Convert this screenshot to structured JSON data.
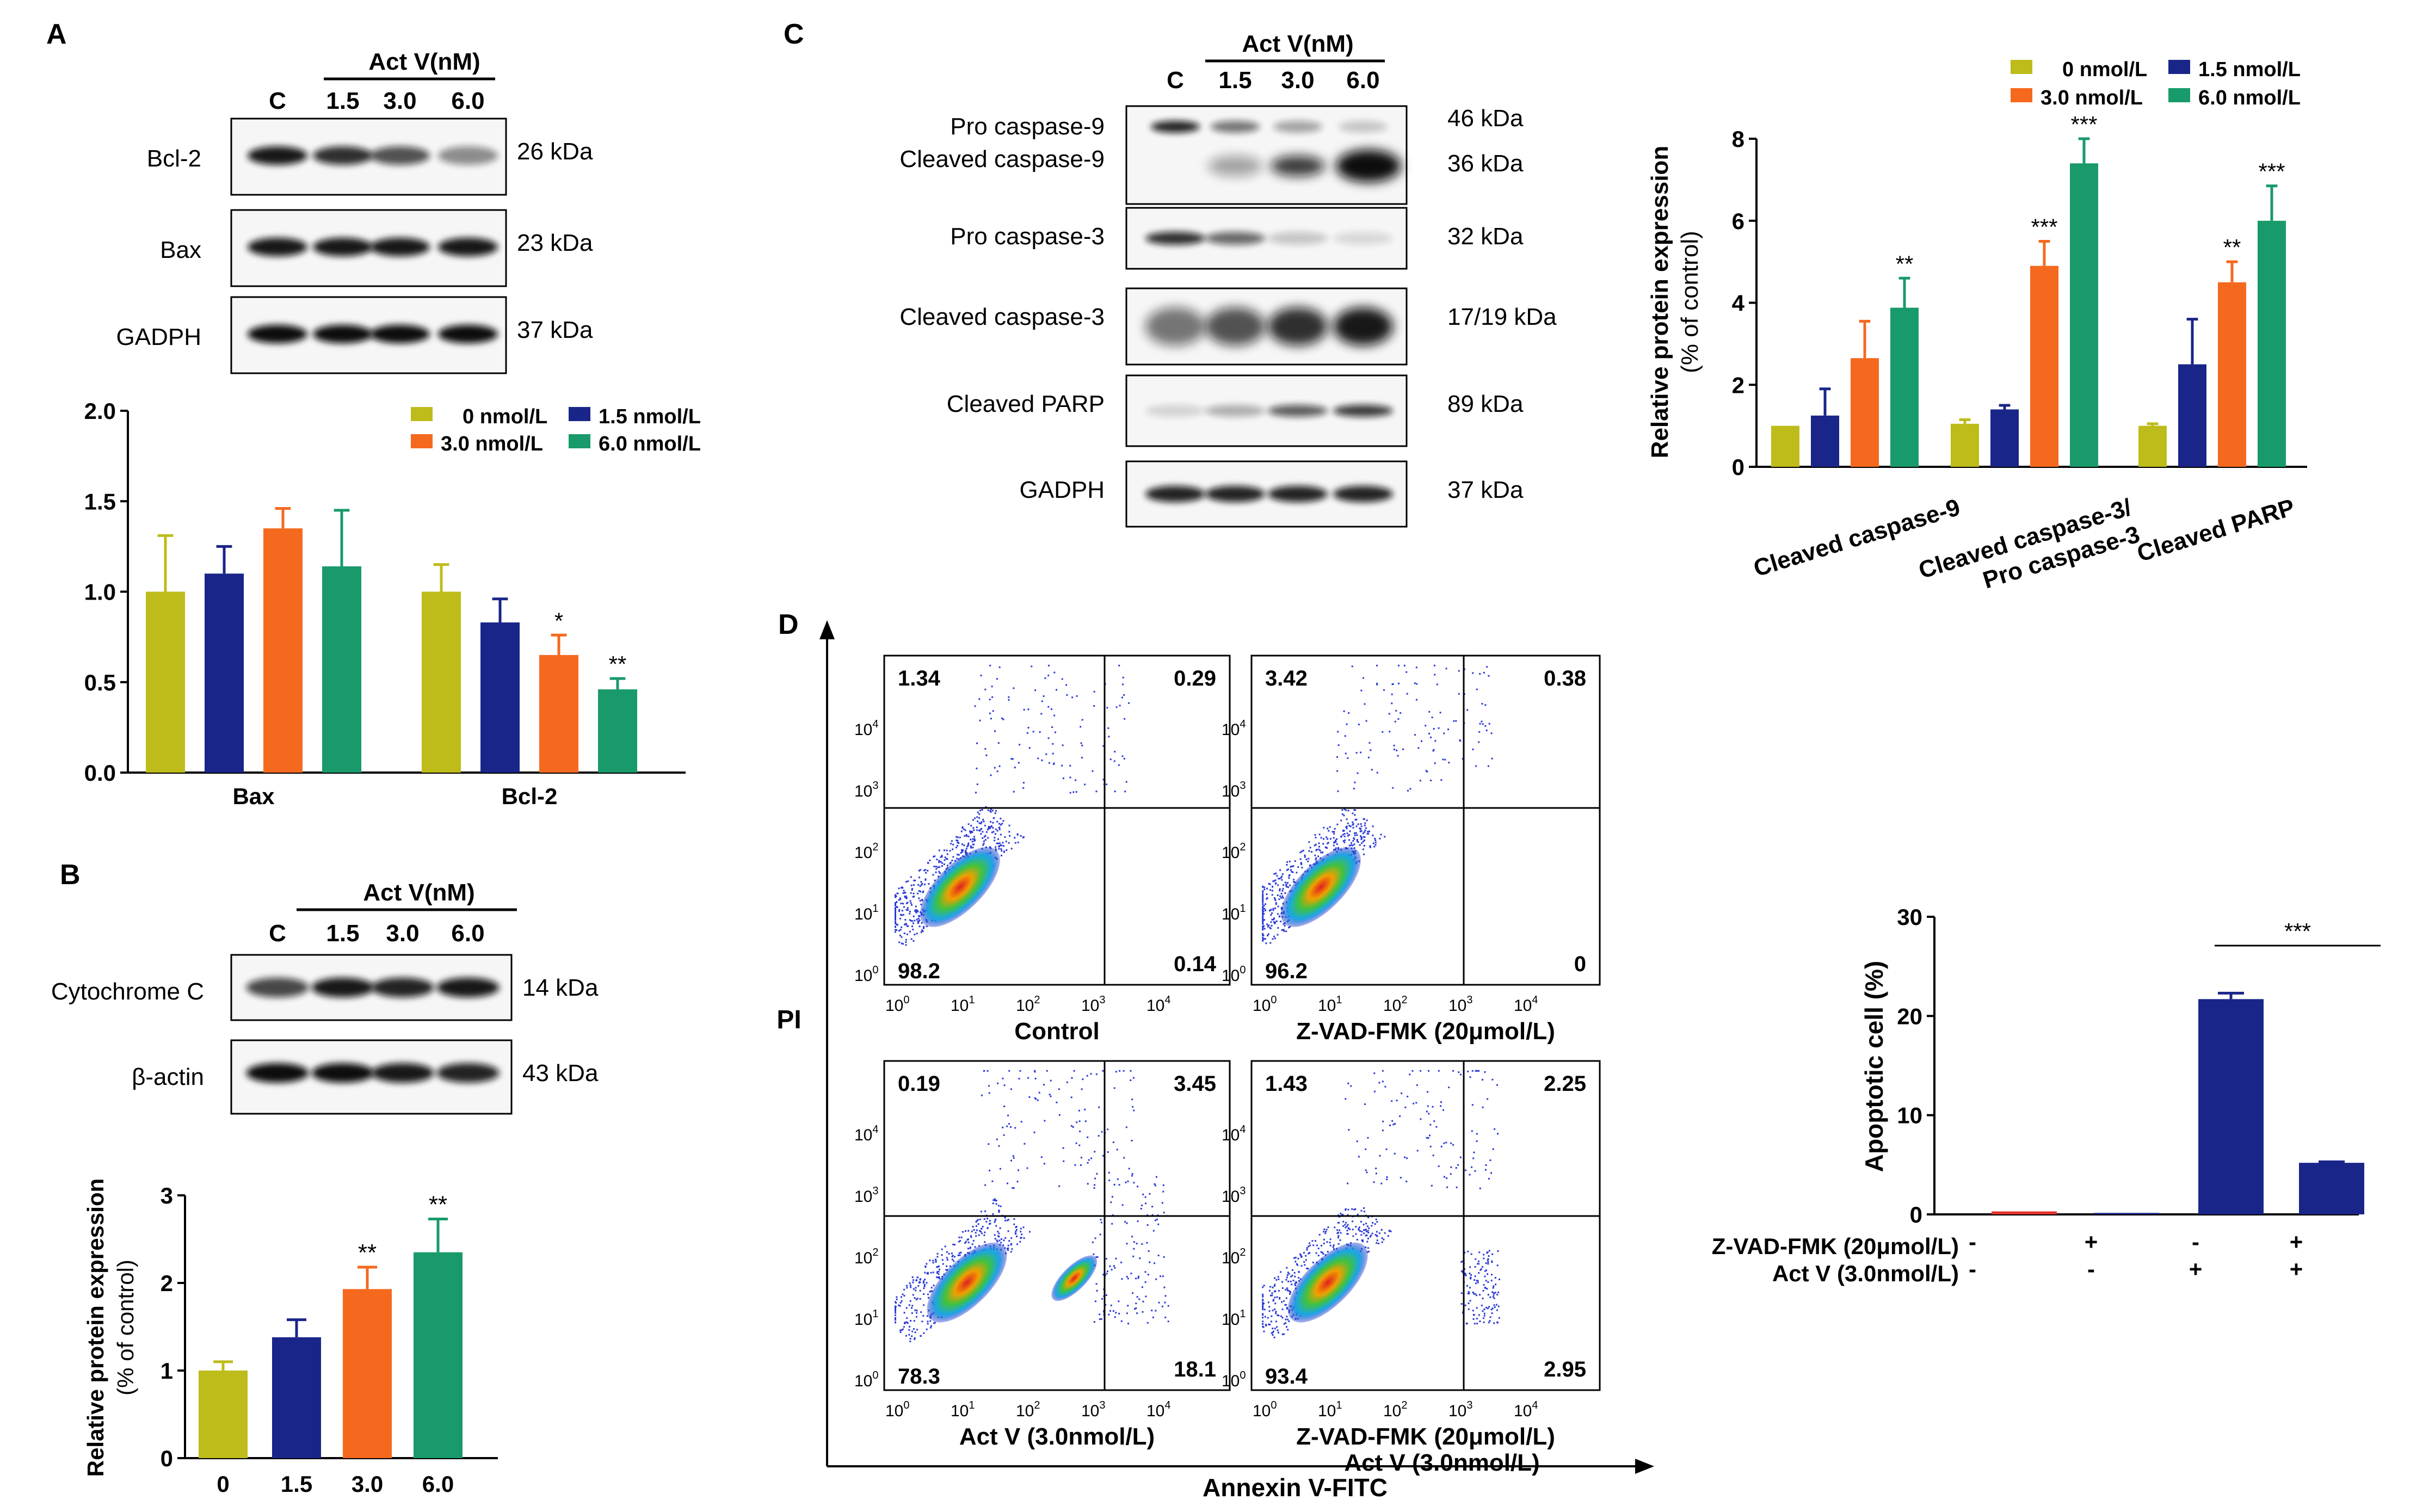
{
  "palette": {
    "y": "#bdbc1a",
    "n": "#1a2589",
    "o": "#f5691f",
    "g": "#189a6a",
    "r": "#e8322a",
    "axis": "#000000"
  },
  "panels": {
    "A": "A",
    "B": "B",
    "C": "C",
    "D": "D"
  },
  "A": {
    "header": "Act V(nM)",
    "lanes": [
      "C",
      "1.5",
      "3.0",
      "6.0"
    ],
    "blots": [
      {
        "label": "Bcl-2",
        "kda": "26 kDa",
        "intensity": [
          0.95,
          0.85,
          0.7,
          0.45
        ]
      },
      {
        "label": "Bax",
        "kda": "23 kDa",
        "intensity": [
          0.95,
          0.95,
          0.95,
          0.95
        ]
      },
      {
        "label": "GADPH",
        "kda": "37 kDa",
        "intensity": [
          1,
          1,
          1,
          1
        ]
      }
    ]
  },
  "B": {
    "header": "Act V(nM)",
    "lanes": [
      "C",
      "1.5",
      "3.0",
      "6.0"
    ],
    "blots": [
      {
        "label": "Cytochrome C",
        "kda": "14 kDa",
        "intensity": [
          0.75,
          0.95,
          0.9,
          0.95
        ]
      },
      {
        "label": "β-actin",
        "kda": "43 kDa",
        "intensity": [
          1,
          1,
          0.95,
          0.9
        ]
      }
    ]
  },
  "C": {
    "header": "Act V(nM)",
    "lanes": [
      "C",
      "1.5",
      "3.0",
      "6.0"
    ],
    "blots": [
      {
        "label1": "Pro caspase-9",
        "label2": "Cleaved caspase-9",
        "kda1": "46 kDa",
        "kda2": "36 kDa"
      },
      {
        "label1": "Pro caspase-3",
        "kda1": "32 kDa"
      },
      {
        "label1": "Cleaved caspase-3",
        "kda1": "17/19 kDa"
      },
      {
        "label1": "Cleaved PARP",
        "kda1": "89 kDa"
      },
      {
        "label1": "GADPH",
        "kda1": "37 kDa"
      }
    ]
  },
  "D": {
    "ylabel": "PI",
    "xlabel": "Annexin V-FITC",
    "plots": [
      {
        "title1": "Control",
        "title2": "",
        "ul": "1.34",
        "ur": "0.29",
        "ll": "98.2",
        "lr": "0.14"
      },
      {
        "title1": "Z-VAD-FMK (20μmol/L)",
        "title2": "",
        "ul": "3.42",
        "ur": "0.38",
        "ll": "96.2",
        "lr": "0"
      },
      {
        "title1": "Act V (3.0nmol/L)",
        "title2": "",
        "ul": "0.19",
        "ur": "3.45",
        "ll": "78.3",
        "lr": "18.1"
      },
      {
        "title1": "Z-VAD-FMK (20μmol/L)",
        "title2": "Act V (3.0nmol/L)",
        "ul": "1.43",
        "ur": "2.25",
        "ll": "93.4",
        "lr": "2.95"
      }
    ],
    "tick_prefix": "10",
    "tick_exps": [
      "0",
      "1",
      "2",
      "3",
      "4"
    ]
  },
  "chart_data": [
    {
      "type": "bar",
      "panel": "A",
      "categories": [
        "Bax",
        "Bcl-2"
      ],
      "series": [
        {
          "name": "0 nmol/L",
          "values": [
            1.0,
            1.0
          ],
          "err": [
            0.31,
            0.15
          ],
          "sig": [
            "",
            ""
          ]
        },
        {
          "name": "1.5 nmol/L",
          "values": [
            1.1,
            0.83
          ],
          "err": [
            0.15,
            0.13
          ],
          "sig": [
            "",
            ""
          ]
        },
        {
          "name": "3.0 nmol/L",
          "values": [
            1.35,
            0.65
          ],
          "err": [
            0.11,
            0.11
          ],
          "sig": [
            "",
            "*"
          ]
        },
        {
          "name": "6.0 nmol/L",
          "values": [
            1.14,
            0.46
          ],
          "err": [
            0.31,
            0.06
          ],
          "sig": [
            "",
            "**"
          ]
        }
      ],
      "ylim": [
        0,
        2.0
      ],
      "yticks": [
        "0.0",
        "0.5",
        "1.0",
        "1.5",
        "2.0"
      ],
      "xlabel": "",
      "ylabel": ""
    },
    {
      "type": "bar",
      "panel": "B",
      "categories": [
        "0",
        "1.5",
        "3.0",
        "6.0"
      ],
      "values": [
        1.0,
        1.38,
        1.93,
        2.35
      ],
      "err": [
        0.1,
        0.2,
        0.25,
        0.38
      ],
      "sig": [
        "",
        "",
        "**",
        "**"
      ],
      "ylim": [
        0,
        3
      ],
      "yticks": [
        "0",
        "1",
        "2",
        "3"
      ],
      "ylabel": "Relative protein expression",
      "ylabel2": "(% of control)"
    },
    {
      "type": "bar",
      "panel": "C",
      "categories": [
        "Cleaved caspase-9",
        "Cleaved caspase-3/",
        "Cleaved PARP"
      ],
      "category_line2": [
        "",
        "Pro caspase-3",
        ""
      ],
      "series": [
        {
          "name": "0 nmol/L",
          "values": [
            1.0,
            1.05,
            1.0
          ],
          "err": [
            0,
            0.1,
            0.05
          ],
          "sig": [
            "",
            "",
            ""
          ]
        },
        {
          "name": "1.5 nmol/L",
          "values": [
            1.25,
            1.4,
            2.5
          ],
          "err": [
            0.65,
            0.1,
            1.1
          ],
          "sig": [
            "",
            "",
            ""
          ]
        },
        {
          "name": "3.0 nmol/L",
          "values": [
            2.65,
            4.9,
            4.5
          ],
          "err": [
            0.9,
            0.6,
            0.5
          ],
          "sig": [
            "",
            "***",
            "**"
          ]
        },
        {
          "name": "6.0 nmol/L",
          "values": [
            3.88,
            7.4,
            6.0
          ],
          "err": [
            0.72,
            0.6,
            0.85
          ],
          "sig": [
            "**",
            "***",
            "***"
          ]
        }
      ],
      "ylim": [
        0,
        8
      ],
      "yticks": [
        "0",
        "2",
        "4",
        "6",
        "8"
      ],
      "ylabel": "Relative protein expression",
      "ylabel2": "(% of control)"
    },
    {
      "type": "bar",
      "panel": "D",
      "values": [
        0.3,
        0.15,
        21.7,
        5.2
      ],
      "err": [
        0,
        0,
        0.6,
        0.1
      ],
      "colors": [
        "r",
        "n",
        "n",
        "n"
      ],
      "ylim": [
        0,
        30
      ],
      "yticks": [
        "0",
        "10",
        "20",
        "30"
      ],
      "ylabel": "Apoptotic cell (%)",
      "sig_bracket": {
        "from": 2,
        "to": 3,
        "label": "***"
      },
      "rows": [
        {
          "label": "Z-VAD-FMK (20μmol/L)",
          "marks": [
            "-",
            "+",
            "-",
            "+"
          ]
        },
        {
          "label": "Act V (3.0nmol/L)",
          "marks": [
            "-",
            "-",
            "+",
            "+"
          ]
        }
      ]
    }
  ]
}
